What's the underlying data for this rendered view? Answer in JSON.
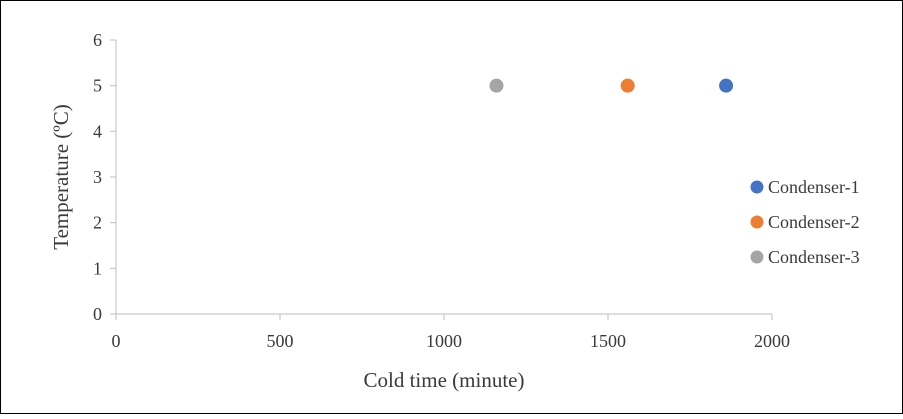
{
  "chart_data": {
    "type": "scatter",
    "xlabel": "Cold time (minute)",
    "ylabel": "Temperature (ºC)",
    "xlim": [
      0,
      2000
    ],
    "ylim": [
      0,
      6
    ],
    "x_ticks": [
      0,
      500,
      1000,
      1500,
      2000
    ],
    "y_ticks": [
      0,
      1,
      2,
      3,
      4,
      5,
      6
    ],
    "grid": false,
    "legend_position": "right",
    "series": [
      {
        "name": "Condenser-1",
        "color": "#4472C4",
        "points": [
          {
            "x": 1860,
            "y": 5
          }
        ]
      },
      {
        "name": "Condenser-2",
        "color": "#ED7D31",
        "points": [
          {
            "x": 1560,
            "y": 5
          }
        ]
      },
      {
        "name": "Condenser-3",
        "color": "#A5A5A5",
        "points": [
          {
            "x": 1160,
            "y": 5
          }
        ]
      }
    ]
  }
}
